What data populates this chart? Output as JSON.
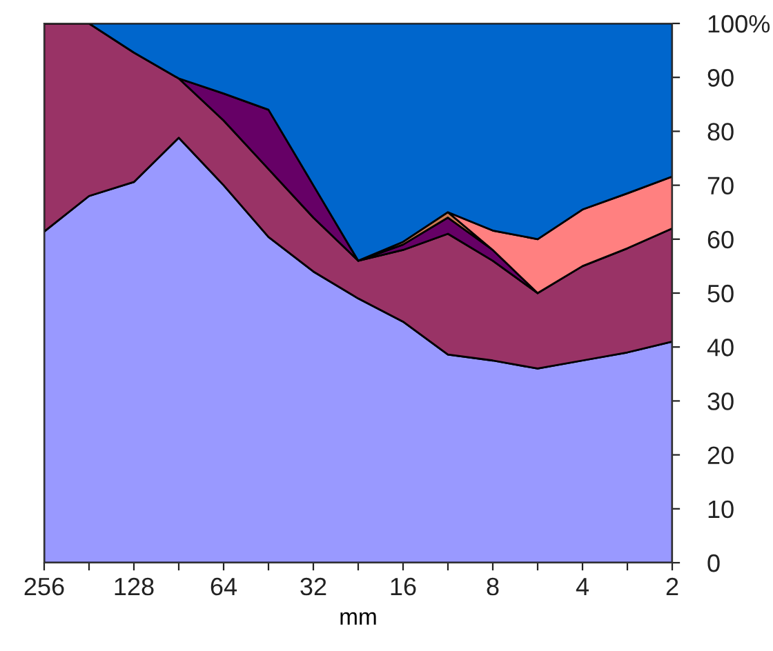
{
  "chart_data": {
    "type": "area",
    "stacked": true,
    "xlabel": "mm",
    "categories": [
      "256",
      null,
      "128",
      null,
      "64",
      null,
      "32",
      null,
      "16",
      null,
      "8",
      null,
      "4",
      null,
      "2"
    ],
    "series": [
      {
        "color": "#9999ff",
        "values": [
          61.4,
          68,
          70.6,
          78.8,
          70,
          60.4,
          54,
          49,
          44.7,
          38.6,
          37.5,
          36,
          37.5,
          39,
          41
        ]
      },
      {
        "color": "#993366",
        "values": [
          38.6,
          32,
          24,
          11,
          12,
          12.6,
          10,
          7,
          13.3,
          22.4,
          18.5,
          14,
          17.5,
          19.3,
          21
        ]
      },
      {
        "color": "#660066",
        "values": [
          null,
          null,
          null,
          0,
          5,
          11,
          6,
          0,
          1,
          3,
          2,
          0,
          null,
          null,
          null
        ]
      },
      {
        "color": "#cc7a52",
        "values": [
          null,
          null,
          null,
          null,
          null,
          null,
          null,
          0,
          0.5,
          1,
          0,
          null,
          null,
          null,
          null
        ]
      },
      {
        "color": "#ff8080",
        "values": [
          null,
          null,
          null,
          null,
          null,
          null,
          null,
          null,
          null,
          0,
          3.6,
          10,
          10.5,
          10.2,
          9.6
        ]
      },
      {
        "color": "#0066cc",
        "values": [
          0,
          0,
          5.4,
          10.2,
          13,
          16,
          30,
          44,
          40.5,
          35,
          38.4,
          40,
          34.5,
          31.5,
          28.4
        ]
      }
    ],
    "ylim": [
      0,
      100
    ],
    "yticks": [
      0,
      10,
      20,
      30,
      40,
      50,
      60,
      70,
      80,
      90,
      {
        "value": 100,
        "label": "100%"
      }
    ],
    "grid": false,
    "legend": false
  }
}
